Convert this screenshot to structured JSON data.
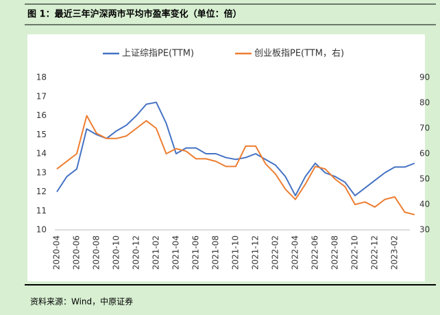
{
  "header": {
    "title": "图 1：最近三年沪深两市平均市盈率变化（单位：倍）"
  },
  "chart_data": {
    "type": "line",
    "categories": [
      "2020-04",
      null,
      "2020-06",
      null,
      "2020-08",
      null,
      "2020-10",
      null,
      "2020-12",
      null,
      "2021-02",
      null,
      "2021-04",
      null,
      "2021-06",
      null,
      "2021-08",
      null,
      "2021-10",
      null,
      "2021-12",
      null,
      "2022-02",
      null,
      "2022-04",
      null,
      "2022-06",
      null,
      "2022-08",
      null,
      "2022-10",
      null,
      "2022-12",
      null,
      "2023-02",
      null,
      null
    ],
    "series": [
      {
        "name": "上证综指PE(TTM)",
        "color": "#4472c4",
        "values": [
          12.0,
          12.8,
          13.2,
          15.3,
          15.0,
          14.8,
          15.2,
          15.5,
          16.0,
          16.6,
          16.7,
          15.6,
          14.0,
          14.3,
          14.3,
          14.0,
          14.0,
          13.8,
          13.7,
          13.8,
          14.0,
          13.7,
          13.4,
          12.8,
          11.8,
          12.8,
          13.5,
          13.0,
          12.8,
          12.5,
          11.8,
          12.2,
          12.6,
          13.0,
          13.3,
          13.3,
          13.5
        ]
      },
      {
        "name": "创业板指PE(TTM，右)",
        "color": "#ed7d31",
        "axis": "y2",
        "values": [
          54,
          57,
          60,
          75,
          68,
          66,
          66,
          67,
          70,
          73,
          70,
          60,
          62,
          61,
          58,
          58,
          57,
          55,
          55,
          63,
          63,
          56,
          52,
          46,
          42,
          48,
          55,
          54,
          50,
          47,
          40,
          41,
          39,
          42,
          43,
          37,
          36
        ]
      }
    ],
    "ylim": [
      10,
      18
    ],
    "yticks": [
      10,
      11,
      12,
      13,
      14,
      15,
      16,
      17,
      18
    ],
    "y2lim": [
      30,
      90
    ],
    "y2ticks": [
      30,
      40,
      50,
      60,
      70,
      80,
      90
    ],
    "legend": "top"
  },
  "footer": {
    "source": "资料来源：Wind，中原证券"
  }
}
